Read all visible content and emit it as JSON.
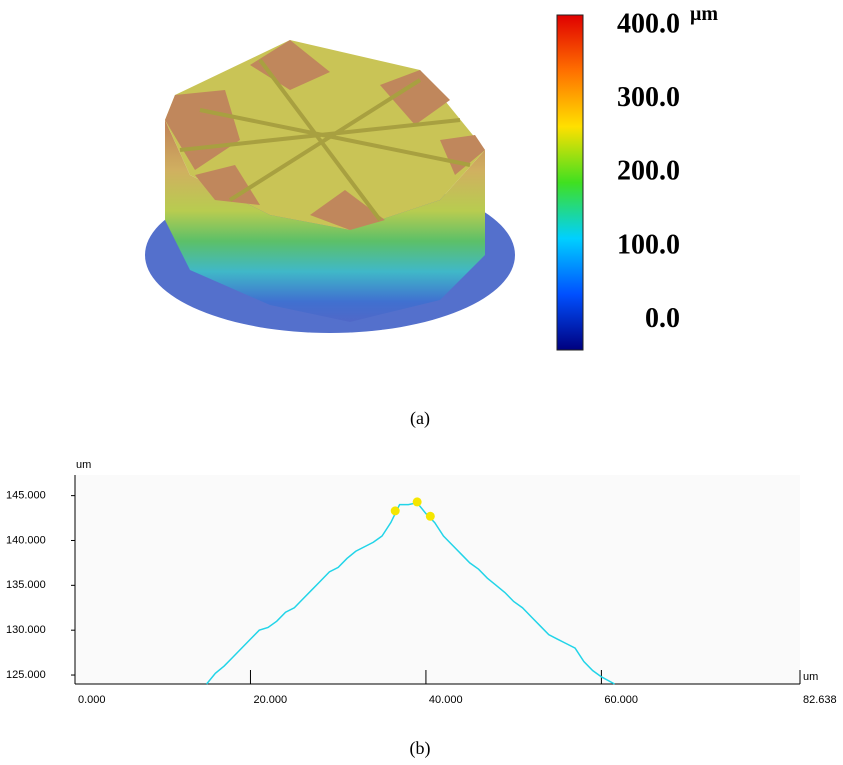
{
  "chart_data": [
    {
      "type": "surface",
      "caption": "(a)",
      "colorbar_unit": "μm",
      "clim": [
        -40,
        415
      ],
      "colorbar_ticks": [
        {
          "value": 0,
          "label": "0.0"
        },
        {
          "value": 100,
          "label": "100.0"
        },
        {
          "value": 200,
          "label": "200.0"
        },
        {
          "value": 300,
          "label": "300.0"
        },
        {
          "value": 400,
          "label": "400.0"
        }
      ],
      "colormap": [
        "#00007f",
        "#0050ff",
        "#00d0ff",
        "#40e020",
        "#ffe000",
        "#ff7000",
        "#e00000"
      ]
    },
    {
      "type": "line",
      "caption": "(b)",
      "x_unit": "um",
      "y_unit": "um",
      "xlim": [
        0,
        82.638
      ],
      "ylim": [
        124,
        147.3
      ],
      "xticks": [
        {
          "value": 0,
          "label": "0.000"
        },
        {
          "value": 20,
          "label": "20.000"
        },
        {
          "value": 40,
          "label": "40.000"
        },
        {
          "value": 60,
          "label": "60.000"
        },
        {
          "value": 82.638,
          "label": "82.638"
        }
      ],
      "yticks": [
        {
          "value": 125,
          "label": "125.000"
        },
        {
          "value": 130,
          "label": "130.000"
        },
        {
          "value": 135,
          "label": "135.000"
        },
        {
          "value": 140,
          "label": "140.000"
        },
        {
          "value": 145,
          "label": "145.000"
        }
      ],
      "x": [
        15,
        16,
        17,
        18,
        19,
        20,
        21,
        22,
        23,
        24,
        25,
        26,
        27,
        28,
        29,
        30,
        31,
        32,
        33,
        34,
        35,
        36,
        37,
        38,
        39,
        40,
        41,
        42,
        43,
        44,
        45,
        46,
        47,
        48,
        49,
        50,
        51,
        52,
        53,
        54,
        55,
        56,
        57,
        58,
        59,
        60,
        61.5
      ],
      "series": [
        {
          "color": "#22d4e8",
          "values": [
            124,
            125.2,
            126,
            127,
            128,
            129,
            130,
            130.3,
            131,
            132,
            132.5,
            133.5,
            134.5,
            135.5,
            136.5,
            137,
            138,
            138.8,
            139.3,
            139.8,
            140.5,
            142,
            144,
            144,
            144.2,
            143,
            142,
            140.5,
            139.5,
            138.5,
            137.5,
            136.8,
            135.8,
            135,
            134.2,
            133.2,
            132.5,
            131.5,
            130.5,
            129.5,
            129,
            128.5,
            128,
            126.5,
            125.5,
            124.8,
            124
          ]
        }
      ],
      "markers": {
        "color": "#f5e600",
        "x": [
          36.5,
          39,
          40.5
        ],
        "values": [
          143.3,
          144.3,
          142.7
        ]
      }
    }
  ]
}
